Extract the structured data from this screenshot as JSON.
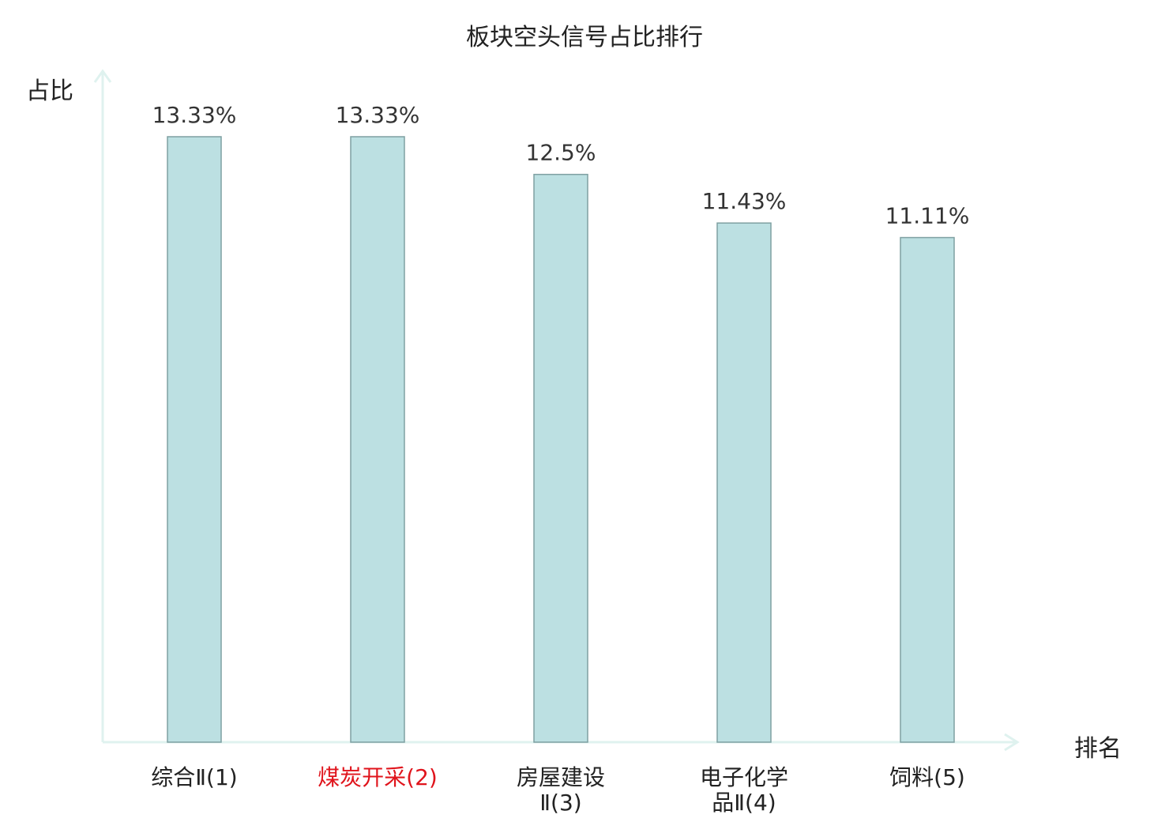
{
  "chart_data": {
    "type": "bar",
    "title": "板块空头信号占比排行",
    "ylabel": "占比",
    "xlabel": "排名",
    "categories": [
      {
        "lines": [
          "综合Ⅱ(1)"
        ],
        "highlight": false
      },
      {
        "lines": [
          "煤炭开采(2)"
        ],
        "highlight": true
      },
      {
        "lines": [
          "房屋建设",
          "Ⅱ(3)"
        ],
        "highlight": false
      },
      {
        "lines": [
          "电子化学",
          "品Ⅱ(4)"
        ],
        "highlight": false
      },
      {
        "lines": [
          "饲料(5)"
        ],
        "highlight": false
      }
    ],
    "values": [
      13.33,
      13.33,
      12.5,
      11.43,
      11.11
    ],
    "value_labels": [
      "13.33%",
      "13.33%",
      "12.5%",
      "11.43%",
      "11.11%"
    ],
    "ylim": [
      0,
      14.6
    ],
    "grid": false,
    "colors": {
      "bar_fill": "#bce0e2",
      "bar_stroke": "#7fa0a2",
      "axis": "#dff2ef",
      "label_text": "#333333",
      "highlight_text": "#e0141c"
    }
  }
}
